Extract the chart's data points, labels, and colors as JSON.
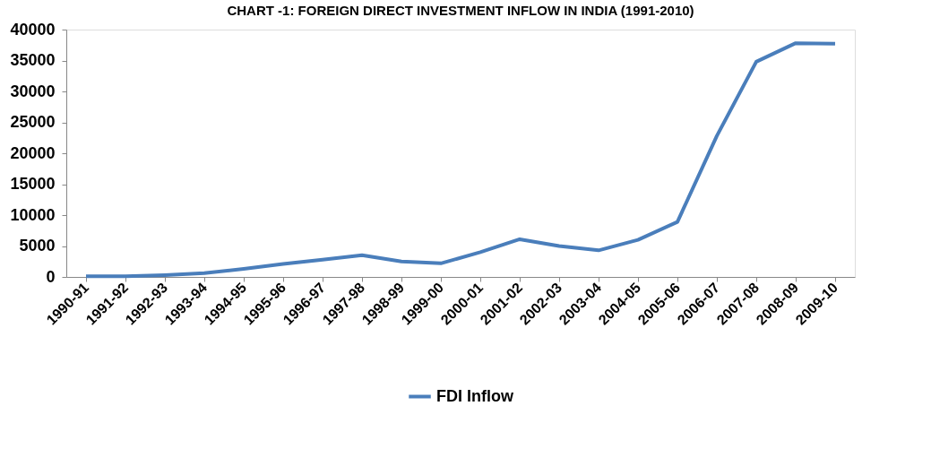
{
  "chart_data": {
    "type": "line",
    "title": "CHART -1: FOREIGN DIRECT INVESTMENT INFLOW IN INDIA (1991-2010)",
    "categories": [
      "1990-91",
      "1991-92",
      "1992-93",
      "1993-94",
      "1994-95",
      "1995-96",
      "1996-97",
      "1997-98",
      "1998-99",
      "1999-00",
      "2000-01",
      "2001-02",
      "2002-03",
      "2003-04",
      "2004-05",
      "2005-06",
      "2006-07",
      "2007-08",
      "2008-09",
      "2009-10"
    ],
    "series": [
      {
        "name": "FDI Inflow",
        "color": "#4a7ebb",
        "values": [
          100,
          100,
          300,
          600,
          1300,
          2100,
          2800,
          3500,
          2500,
          2200,
          4000,
          6100,
          5000,
          4300,
          6000,
          8900,
          22800,
          34800,
          37800,
          37700
        ]
      }
    ],
    "ylim": [
      0,
      40000
    ],
    "yticks": [
      0,
      5000,
      10000,
      15000,
      20000,
      25000,
      30000,
      35000,
      40000
    ],
    "grid": false,
    "legend": "bottom",
    "marker": "none",
    "line_style": "solid"
  }
}
